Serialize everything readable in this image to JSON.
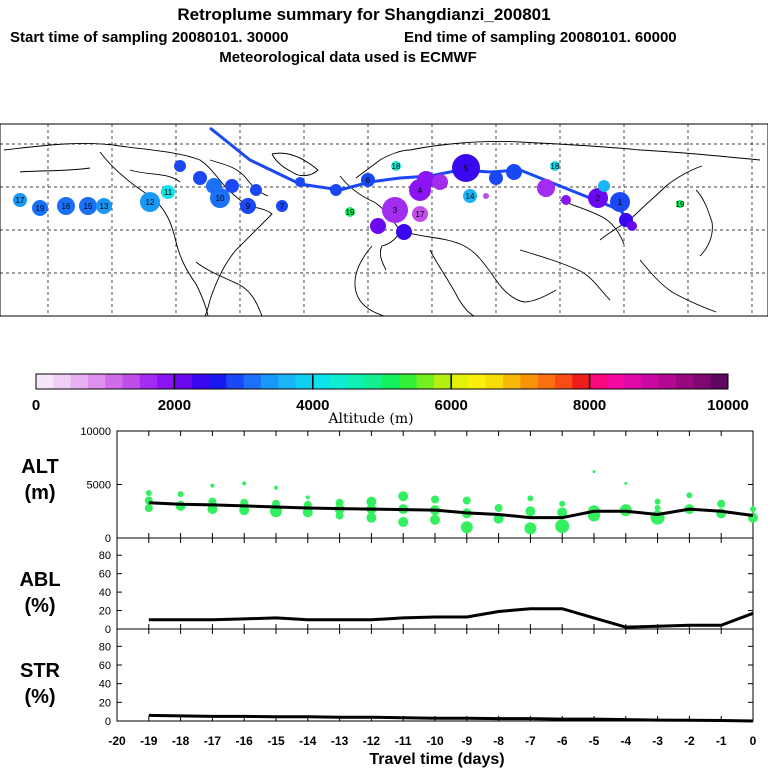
{
  "title": {
    "line1": "Retroplume summary for Shangdianzi_200801",
    "line2_start": "Start time of sampling 20080101. 30000",
    "line2_end": "End time of sampling 20080101. 60000",
    "line3": "Meteorological data used is ECMWF"
  },
  "colorbar": {
    "label": "Altitude (m)",
    "ticks": [
      "0",
      "2000",
      "4000",
      "6000",
      "8000",
      "10000"
    ],
    "colors": [
      "#f7e6fb",
      "#f0cff7",
      "#e8b2f2",
      "#de90ee",
      "#d06cea",
      "#c04cea",
      "#a22cf0",
      "#8a14f4",
      "#6a08f0",
      "#3a08f0",
      "#1a18f0",
      "#1a48f4",
      "#1a70f6",
      "#1a98f8",
      "#1ab4f8",
      "#10cef0",
      "#10e2ec",
      "#10ecd4",
      "#10f0b4",
      "#14f090",
      "#14f060",
      "#34f038",
      "#74f020",
      "#b4f010",
      "#e2f00c",
      "#f8f00c",
      "#f8dc08",
      "#f8b808",
      "#f89408",
      "#f87010",
      "#f84c14",
      "#f01c1c",
      "#f8087c",
      "#f408a0",
      "#e008a8",
      "#c808a0",
      "#b00890",
      "#980880",
      "#7e0870",
      "#600860"
    ]
  },
  "map": {
    "clusters": [
      {
        "label": "17",
        "color": "#1a98f8"
      },
      {
        "label": "19",
        "color": "#1a70f6"
      },
      {
        "label": "16",
        "color": "#1a70f6"
      },
      {
        "label": "15",
        "color": "#1a70f6"
      },
      {
        "label": "13",
        "color": "#1a98f8"
      },
      {
        "label": "12",
        "color": "#1a98f8"
      },
      {
        "label": "11",
        "color": "#10e2ec"
      },
      {
        "label": "10",
        "color": "#1a70f6"
      },
      {
        "label": "9",
        "color": "#1a48f4"
      },
      {
        "label": "7",
        "color": "#1a48f4"
      },
      {
        "label": "6",
        "color": "#1a48f4"
      },
      {
        "label": "18",
        "color": "#10ecd4"
      },
      {
        "label": "19",
        "color": "#14f060"
      },
      {
        "label": "5",
        "color": "#3a08f0"
      },
      {
        "label": "4",
        "color": "#8a14f4"
      },
      {
        "label": "3",
        "color": "#a22cf0"
      },
      {
        "label": "2",
        "color": "#6a08f0"
      },
      {
        "label": "1",
        "color": "#1a48f4"
      },
      {
        "label": "17",
        "color": "#c04cea"
      },
      {
        "label": "14",
        "color": "#1ab4f8"
      },
      {
        "label": "18",
        "color": "#10e2ec"
      },
      {
        "label": "19",
        "color": "#14f060"
      }
    ]
  },
  "chart_data": [
    {
      "type": "scatter",
      "name": "ALT",
      "panel_label": [
        "ALT",
        "(m)"
      ],
      "ylim": [
        0,
        10000
      ],
      "yticks": [
        "0",
        "5000",
        "10000"
      ],
      "xlim": [
        -20,
        0
      ],
      "line": {
        "x": [
          -19,
          -18,
          -17,
          -16,
          -15,
          -14,
          -13,
          -12,
          -11,
          -10,
          -9,
          -8,
          -7,
          -6,
          -5,
          -4,
          -3,
          -2,
          -1,
          0
        ],
        "y": [
          3300,
          3150,
          3100,
          3000,
          2900,
          2800,
          2750,
          2700,
          2650,
          2600,
          2350,
          2200,
          1900,
          1900,
          2500,
          2500,
          2200,
          2700,
          2500,
          2100
        ]
      },
      "points": [
        {
          "x": -19,
          "y": 4200,
          "s": 3
        },
        {
          "x": -19,
          "y": 3500,
          "s": 4
        },
        {
          "x": -19,
          "y": 2800,
          "s": 4
        },
        {
          "x": -18,
          "y": 4100,
          "s": 3
        },
        {
          "x": -18,
          "y": 3000,
          "s": 5
        },
        {
          "x": -17,
          "y": 4900,
          "s": 2
        },
        {
          "x": -17,
          "y": 3400,
          "s": 4
        },
        {
          "x": -17,
          "y": 2700,
          "s": 5
        },
        {
          "x": -16,
          "y": 5100,
          "s": 2
        },
        {
          "x": -16,
          "y": 3300,
          "s": 4
        },
        {
          "x": -16,
          "y": 2600,
          "s": 5
        },
        {
          "x": -15,
          "y": 4700,
          "s": 2
        },
        {
          "x": -15,
          "y": 3200,
          "s": 4
        },
        {
          "x": -15,
          "y": 2500,
          "s": 6
        },
        {
          "x": -14,
          "y": 3800,
          "s": 2
        },
        {
          "x": -14,
          "y": 3100,
          "s": 4
        },
        {
          "x": -14,
          "y": 2400,
          "s": 5
        },
        {
          "x": -13,
          "y": 3300,
          "s": 4
        },
        {
          "x": -13,
          "y": 2700,
          "s": 5
        },
        {
          "x": -13,
          "y": 2100,
          "s": 4
        },
        {
          "x": -12,
          "y": 3400,
          "s": 5
        },
        {
          "x": -12,
          "y": 2700,
          "s": 5
        },
        {
          "x": -12,
          "y": 1900,
          "s": 5
        },
        {
          "x": -11,
          "y": 3900,
          "s": 5
        },
        {
          "x": -11,
          "y": 2700,
          "s": 5
        },
        {
          "x": -11,
          "y": 1500,
          "s": 5
        },
        {
          "x": -10,
          "y": 3600,
          "s": 4
        },
        {
          "x": -10,
          "y": 2600,
          "s": 5
        },
        {
          "x": -10,
          "y": 1700,
          "s": 5
        },
        {
          "x": -9,
          "y": 3500,
          "s": 4
        },
        {
          "x": -9,
          "y": 2300,
          "s": 5
        },
        {
          "x": -9,
          "y": 1000,
          "s": 6
        },
        {
          "x": -8,
          "y": 2800,
          "s": 4
        },
        {
          "x": -8,
          "y": 1800,
          "s": 5
        },
        {
          "x": -7,
          "y": 3700,
          "s": 3
        },
        {
          "x": -7,
          "y": 2500,
          "s": 5
        },
        {
          "x": -7,
          "y": 900,
          "s": 6
        },
        {
          "x": -6,
          "y": 3200,
          "s": 3
        },
        {
          "x": -6,
          "y": 2400,
          "s": 5
        },
        {
          "x": -6,
          "y": 1100,
          "s": 7
        },
        {
          "x": -5,
          "y": 6200,
          "s": 1.5
        },
        {
          "x": -5,
          "y": 2500,
          "s": 6
        },
        {
          "x": -5,
          "y": 2100,
          "s": 6
        },
        {
          "x": -4,
          "y": 5100,
          "s": 1.5
        },
        {
          "x": -4,
          "y": 2600,
          "s": 6
        },
        {
          "x": -3,
          "y": 3400,
          "s": 3
        },
        {
          "x": -3,
          "y": 2800,
          "s": 3
        },
        {
          "x": -3,
          "y": 1900,
          "s": 7
        },
        {
          "x": -2,
          "y": 4000,
          "s": 3
        },
        {
          "x": -2,
          "y": 2700,
          "s": 5
        },
        {
          "x": -1,
          "y": 3200,
          "s": 4
        },
        {
          "x": -1,
          "y": 2300,
          "s": 5
        },
        {
          "x": 0,
          "y": 2700,
          "s": 3
        },
        {
          "x": 0,
          "y": 1900,
          "s": 5
        }
      ]
    },
    {
      "type": "line",
      "name": "ABL",
      "panel_label": [
        "ABL",
        "(%)"
      ],
      "ylim": [
        0,
        90
      ],
      "yticks": [
        "0",
        "20",
        "40",
        "60",
        "80"
      ],
      "xlim": [
        -20,
        0
      ],
      "x": [
        -19,
        -18,
        -17,
        -16,
        -15,
        -14,
        -13,
        -12,
        -11,
        -10,
        -9,
        -8,
        -7,
        -6,
        -5,
        -4,
        -3,
        -2,
        -1,
        0
      ],
      "y": [
        10,
        10,
        10,
        11,
        12,
        10,
        10,
        10,
        12,
        13,
        13,
        19,
        22,
        22,
        12,
        2,
        3,
        4,
        4,
        17
      ]
    },
    {
      "type": "line",
      "name": "STR",
      "panel_label": [
        "STR",
        "(%)"
      ],
      "ylim": [
        0,
        90
      ],
      "yticks": [
        "0",
        "20",
        "40",
        "60",
        "80"
      ],
      "xlim": [
        -20,
        0
      ],
      "x": [
        -19,
        -18,
        -17,
        -16,
        -15,
        -14,
        -13,
        -12,
        -11,
        -10,
        -9,
        -8,
        -7,
        -6,
        -5,
        -4,
        -3,
        -2,
        -1,
        0
      ],
      "y": [
        6,
        5.5,
        5,
        5,
        4.5,
        4.5,
        4,
        4,
        3.5,
        3,
        3,
        2.5,
        2.5,
        2,
        2,
        1.5,
        1,
        0.8,
        0.5,
        0
      ]
    }
  ],
  "xaxis": {
    "label": "Travel time (days)",
    "ticks": [
      "-20",
      "-19",
      "-18",
      "-17",
      "-16",
      "-15",
      "-14",
      "-13",
      "-12",
      "-11",
      "-10",
      "-9",
      "-8",
      "-7",
      "-6",
      "-5",
      "-4",
      "-3",
      "-2",
      "-1",
      "0"
    ]
  }
}
